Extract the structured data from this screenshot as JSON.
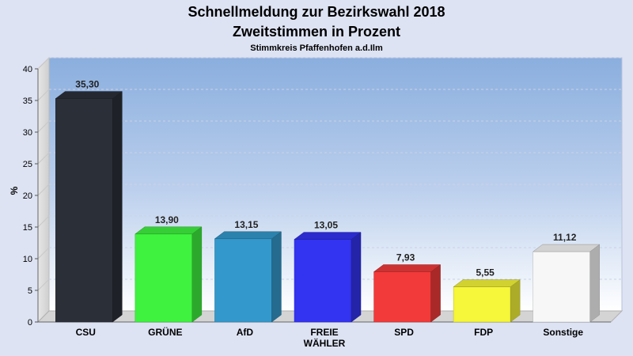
{
  "chart_data": {
    "type": "bar",
    "title": "Schnellmeldung zur Bezirkswahl 2018",
    "subtitle": "Zweitstimmen in Prozent",
    "caption": "Stimmkreis Pfaffenhofen a.d.Ilm",
    "ylabel": "%",
    "xlabel": "",
    "ylim": [
      0,
      40
    ],
    "yticks": [
      0,
      5,
      10,
      15,
      20,
      25,
      30,
      35,
      40
    ],
    "grid": true,
    "categories": [
      "CSU",
      "GRÜNE",
      "AfD",
      "FREIE WÄHLER",
      "SPD",
      "FDP",
      "Sonstige"
    ],
    "category_lines": [
      [
        "CSU"
      ],
      [
        "GRÜNE"
      ],
      [
        "AfD"
      ],
      [
        "FREIE",
        "WÄHLER"
      ],
      [
        "SPD"
      ],
      [
        "FDP"
      ],
      [
        "Sonstige"
      ]
    ],
    "values": [
      35.3,
      13.9,
      13.15,
      13.05,
      7.93,
      5.55,
      11.12
    ],
    "value_labels": [
      "35,30",
      "13,90",
      "13,15",
      "13,05",
      "7,93",
      "5,55",
      "11,12"
    ],
    "colors": [
      "#2b2f38",
      "#3ff23f",
      "#3399cc",
      "#3333f2",
      "#f23a3a",
      "#f6f63a",
      "#f7f7f7"
    ]
  }
}
